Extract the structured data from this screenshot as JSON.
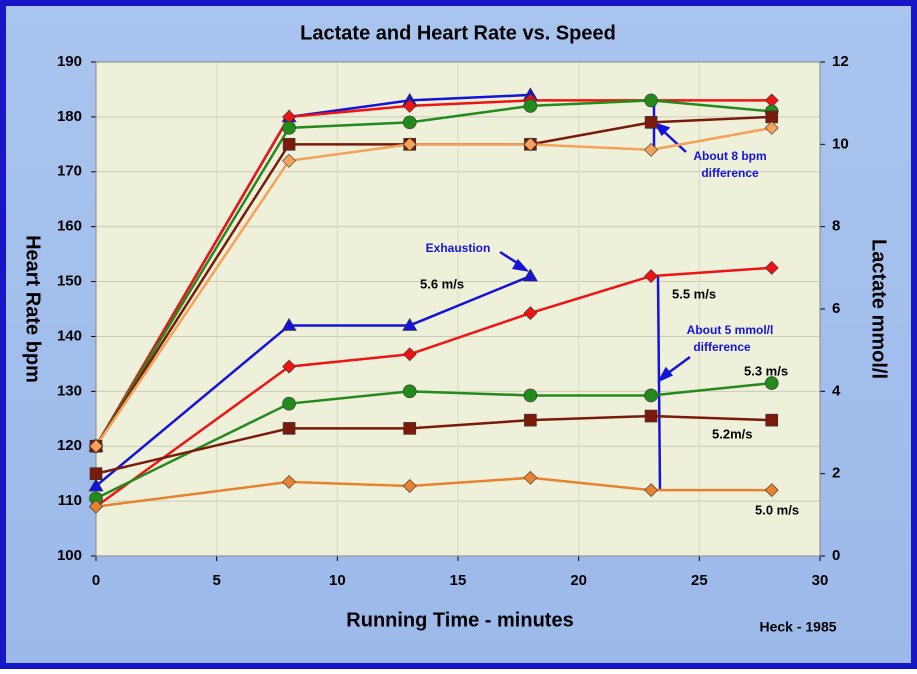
{
  "chart_data": {
    "type": "line",
    "title": "Lactate and Heart Rate vs. Speed",
    "x_label": "Running Time - minutes",
    "y_label": "Heart Rate bpm",
    "y2_label": "Lactate mmol/l",
    "x": [
      0,
      8,
      13,
      18,
      23,
      28
    ],
    "xlim": [
      0,
      30
    ],
    "xticks": [
      0,
      5,
      10,
      15,
      20,
      25,
      30
    ],
    "ylim": [
      100,
      190
    ],
    "yticks": [
      100,
      110,
      120,
      130,
      140,
      150,
      160,
      170,
      180,
      190
    ],
    "y2lim": [
      0,
      12
    ],
    "y2ticks": [
      0,
      2,
      4,
      6,
      8,
      10,
      12
    ],
    "grid": true,
    "series": [
      {
        "color": "#1414d8",
        "marker": "triangle",
        "values": [
          120,
          180,
          183,
          184,
          null,
          null
        ]
      },
      {
        "color": "#ee1414",
        "marker": "diamond",
        "values": [
          120,
          180,
          182,
          183,
          183,
          183
        ]
      },
      {
        "color": "#238a1c",
        "marker": "circle",
        "values": [
          120,
          178,
          179,
          182,
          183,
          181
        ]
      },
      {
        "color": "#7a1a0a",
        "marker": "square",
        "values": [
          120,
          175,
          175,
          175,
          179,
          180
        ]
      },
      {
        "color": "#f4a25a",
        "marker": "diamond",
        "values": [
          120,
          172,
          175,
          175,
          174,
          178
        ]
      },
      {
        "name": "5.6 m/s",
        "axis": "y2",
        "color": "#1414d8",
        "marker": "triangle",
        "values": [
          1.7,
          5.6,
          5.6,
          6.8,
          null,
          null
        ]
      },
      {
        "name": "5.5 m/s",
        "axis": "y2",
        "color": "#ee1414",
        "marker": "diamond",
        "values": [
          1.2,
          4.6,
          4.9,
          5.9,
          6.8,
          7.0
        ]
      },
      {
        "name": "5.3 m/s",
        "axis": "y2",
        "color": "#238a1c",
        "marker": "circle",
        "values": [
          1.4,
          3.7,
          4.0,
          3.9,
          3.9,
          4.2
        ]
      },
      {
        "name": "5.2m/s",
        "axis": "y2",
        "color": "#7a1a0a",
        "marker": "square",
        "values": [
          2.0,
          3.1,
          3.1,
          3.3,
          3.4,
          3.3
        ]
      },
      {
        "name": "5.0 m/s",
        "axis": "y2",
        "color": "#e8822e",
        "marker": "diamond",
        "values": [
          1.2,
          1.8,
          1.7,
          1.9,
          1.6,
          1.6
        ]
      }
    ],
    "annotations": [
      {
        "lines": [
          "About 8 bpm",
          "difference"
        ]
      },
      {
        "lines": [
          "Exhaustion"
        ]
      },
      {
        "lines": [
          "About 5 mmol/l",
          "difference"
        ]
      },
      {
        "lines": [
          "Heck - 1985"
        ]
      }
    ]
  }
}
